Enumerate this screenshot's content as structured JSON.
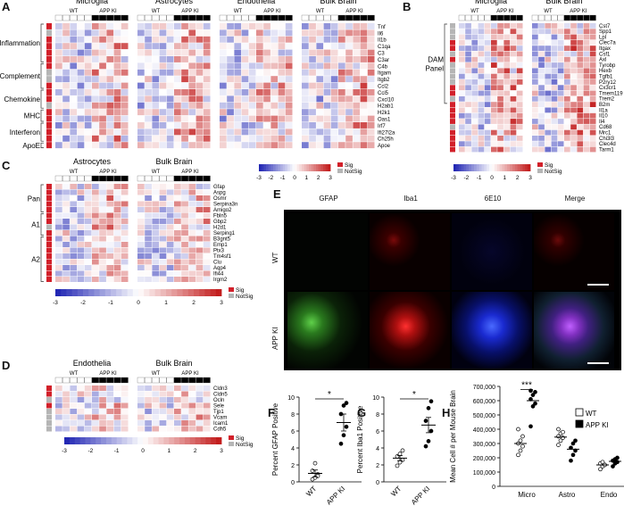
{
  "panels": {
    "A": {
      "letter": "A",
      "group_titles": [
        "Microglia",
        "Astrocytes",
        "Endothelia",
        "Bulk Brain"
      ],
      "genotype_labels": [
        "WT",
        "APP KI"
      ],
      "categories": [
        {
          "label": "Inflammation",
          "start": 0,
          "end": 5
        },
        {
          "label": "Complement",
          "start": 6,
          "end": 9
        },
        {
          "label": "Chemokine",
          "start": 10,
          "end": 12
        },
        {
          "label": "MHC",
          "start": 13,
          "end": 14
        },
        {
          "label": "Interferon",
          "start": 15,
          "end": 17
        },
        {
          "label": "ApoE",
          "start": 18,
          "end": 18
        }
      ],
      "genes": [
        "Tnf",
        "Il6",
        "Il1b",
        "C1qa",
        "C3",
        "C3ar",
        "C4b",
        "Itgam",
        "Itgb2",
        "Ccl2",
        "Ccl5",
        "Cxcl10",
        "H2ab1",
        "H2k1",
        "Oas1",
        "Irf7",
        "Ifi27l2a",
        "Ch25h",
        "Apoe"
      ],
      "legend": {
        "ticks": [
          "-3",
          "-2",
          "-1",
          "0",
          "1",
          "2",
          "3"
        ],
        "sig": "Sig",
        "notsig": "NotSig"
      }
    },
    "B": {
      "letter": "B",
      "group_titles": [
        "Microglia",
        "Bulk Brain"
      ],
      "genotype_labels": [
        "WT",
        "APP KI"
      ],
      "category": "DAM Panel",
      "genes": [
        "Cst7",
        "Spp1",
        "Lpl",
        "Clec7a",
        "Itgax",
        "Csf1",
        "Axl",
        "Tyrobp",
        "Hexb",
        "Tgfb1",
        "P2ry12",
        "Cx3cr1",
        "Tmem119",
        "Trem2",
        "B2m",
        "Il1a",
        "Il10",
        "Il4",
        "Cd68",
        "Mrc1",
        "Chi3l3",
        "Clec4d",
        "Tarm1"
      ],
      "legend": {
        "ticks": [
          "-3",
          "-2",
          "-1",
          "0",
          "1",
          "2",
          "3"
        ],
        "sig": "Sig",
        "notsig": "NotSig"
      }
    },
    "C": {
      "letter": "C",
      "group_titles": [
        "Astrocytes",
        "Bulk Brain"
      ],
      "genotype_labels": [
        "WT",
        "APP KI"
      ],
      "categories": [
        {
          "label": "Pan",
          "start": 0,
          "end": 4
        },
        {
          "label": "A1",
          "start": 5,
          "end": 8
        },
        {
          "label": "A2",
          "start": 9,
          "end": 16
        }
      ],
      "genes": [
        "Gfap",
        "Aspg",
        "Osmr",
        "Serpina3n",
        "Amigo2",
        "Fbln5",
        "Gbp2",
        "H2d1",
        "Serping1",
        "B3gnt5",
        "Emp1",
        "Ptx3",
        "Tm4sf1",
        "Clu",
        "Aqp4",
        "Ifi44",
        "Irgm2"
      ],
      "legend": {
        "ticks": [
          "-3",
          "-2",
          "-1",
          "0",
          "1",
          "2",
          "3"
        ],
        "sig": "Sig",
        "notsig": "NotSig"
      }
    },
    "D": {
      "letter": "D",
      "group_titles": [
        "Endothelia",
        "Bulk Brain"
      ],
      "genotype_labels": [
        "WT",
        "APP KI"
      ],
      "genes": [
        "Cldn3",
        "Cldn5",
        "Ocln",
        "Sele",
        "Tjp1",
        "Vcam",
        "Icam1",
        "Cdh5"
      ],
      "legend": {
        "ticks": [
          "-3",
          "-2",
          "-1",
          "0",
          "1",
          "2",
          "3"
        ],
        "sig": "Sig",
        "notsig": "NotSig"
      }
    },
    "E": {
      "letter": "E",
      "column_titles": [
        "GFAP",
        "Iba1",
        "6E10",
        "Merge"
      ],
      "row_titles": [
        "WT",
        "APP KI"
      ]
    }
  },
  "chart_data": [
    {
      "panel": "F",
      "type": "scatter",
      "ylabel": "Percent GFAP Positive",
      "categories": [
        "WT",
        "APP KI"
      ],
      "ylim": [
        0,
        10
      ],
      "yticks": [
        0,
        2,
        4,
        6,
        8,
        10
      ],
      "significance": "*",
      "series": [
        {
          "values": [
            [
              0.3,
              0.5,
              0.9,
              1.3,
              2.2,
              0.7
            ]
          ],
          "mean": 1.0,
          "sem": 0.4
        },
        {
          "values": [
            [
              4.5,
              5.5,
              6.5,
              8.0,
              9.0,
              9.3
            ]
          ],
          "mean": 7.0,
          "sem": 1.0
        }
      ],
      "points": {
        "WT": [
          0.3,
          0.5,
          0.9,
          1.3,
          2.2,
          0.7
        ],
        "APP KI": [
          4.5,
          5.5,
          6.5,
          8.0,
          9.0,
          9.3
        ]
      },
      "means": {
        "WT": 1.0,
        "APP KI": 7.0
      },
      "sems": {
        "WT": 0.4,
        "APP KI": 1.0
      }
    },
    {
      "panel": "G",
      "type": "scatter",
      "ylabel": "Percent Iba1 Positive",
      "categories": [
        "WT",
        "APP KI"
      ],
      "ylim": [
        0,
        10
      ],
      "yticks": [
        0,
        2,
        4,
        6,
        8,
        10
      ],
      "significance": "*",
      "points": {
        "WT": [
          1.9,
          2.3,
          2.6,
          3.0,
          3.3,
          3.7
        ],
        "APP KI": [
          4.2,
          4.8,
          6.0,
          7.2,
          8.7,
          9.5
        ]
      },
      "means": {
        "WT": 2.8,
        "APP KI": 6.7
      },
      "sems": {
        "WT": 0.3,
        "APP KI": 0.9
      }
    },
    {
      "panel": "H",
      "type": "scatter",
      "ylabel": "Mean Cell # per Mouse Brain",
      "categories": [
        "Micro",
        "Astro",
        "Endo"
      ],
      "ylim": [
        0,
        700000
      ],
      "yticks": [
        "0",
        "100,000",
        "200,000",
        "300,000",
        "400,000",
        "500,000",
        "600,000",
        "700,000"
      ],
      "legend": [
        "WT",
        "APP KI"
      ],
      "significance": "***",
      "points": {
        "WT": {
          "Micro": [
            220000,
            250000,
            280000,
            300000,
            320000,
            350000,
            400000
          ],
          "Astro": [
            290000,
            320000,
            340000,
            350000,
            370000,
            380000,
            400000
          ],
          "Endo": [
            120000,
            140000,
            150000,
            160000,
            170000,
            150000
          ]
        },
        "APP KI": {
          "Micro": [
            420000,
            560000,
            580000,
            610000,
            640000,
            660000,
            670000
          ],
          "Astro": [
            180000,
            220000,
            250000,
            270000,
            300000,
            320000
          ],
          "Endo": [
            140000,
            160000,
            170000,
            180000,
            190000,
            200000
          ]
        }
      },
      "means": {
        "WT": {
          "Micro": 300000,
          "Astro": 345000,
          "Endo": 150000
        },
        "APP KI": {
          "Micro": 600000,
          "Astro": 260000,
          "Endo": 175000
        }
      }
    }
  ],
  "panel_letters": {
    "F": "F",
    "G": "G",
    "H": "H"
  }
}
